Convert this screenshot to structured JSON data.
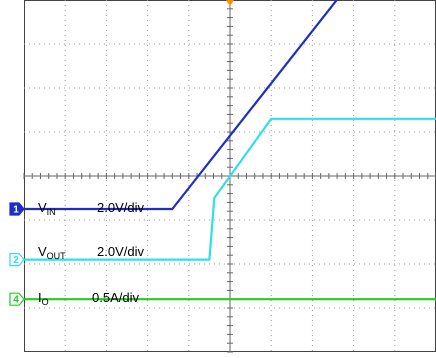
{
  "chart_data": {
    "type": "line",
    "grid": true,
    "x_divisions": 10,
    "y_divisions": 8,
    "trigger_marker_color": "#ff8c00",
    "series": [
      {
        "id": "vin",
        "marker": "1",
        "label_main": "V",
        "label_sub": "IN",
        "scale": "2.0V/div",
        "color": "#1f2fc4",
        "marker_style": "filled",
        "ground_div": 3.25,
        "points": [
          [
            0,
            0.0
          ],
          [
            3.6,
            0.0
          ],
          [
            7.8,
            5.0
          ],
          [
            10,
            5.0
          ]
        ]
      },
      {
        "id": "vout",
        "marker": "2",
        "label_main": "V",
        "label_sub": "OUT",
        "scale": "2.0V/div",
        "color": "#33ddea",
        "marker_style": "outline",
        "ground_div": 2.1,
        "points": [
          [
            0,
            0.0
          ],
          [
            4.5,
            0.0
          ],
          [
            4.62,
            1.4
          ],
          [
            6.0,
            3.2
          ],
          [
            10,
            3.2
          ]
        ]
      },
      {
        "id": "io",
        "marker": "4",
        "label_main": "I",
        "label_sub": "O",
        "scale": "0.5A/div",
        "color": "#22cc22",
        "marker_style": "outline",
        "ground_div": 1.2,
        "points": [
          [
            0,
            0.0
          ],
          [
            10,
            0.0
          ]
        ]
      }
    ]
  }
}
